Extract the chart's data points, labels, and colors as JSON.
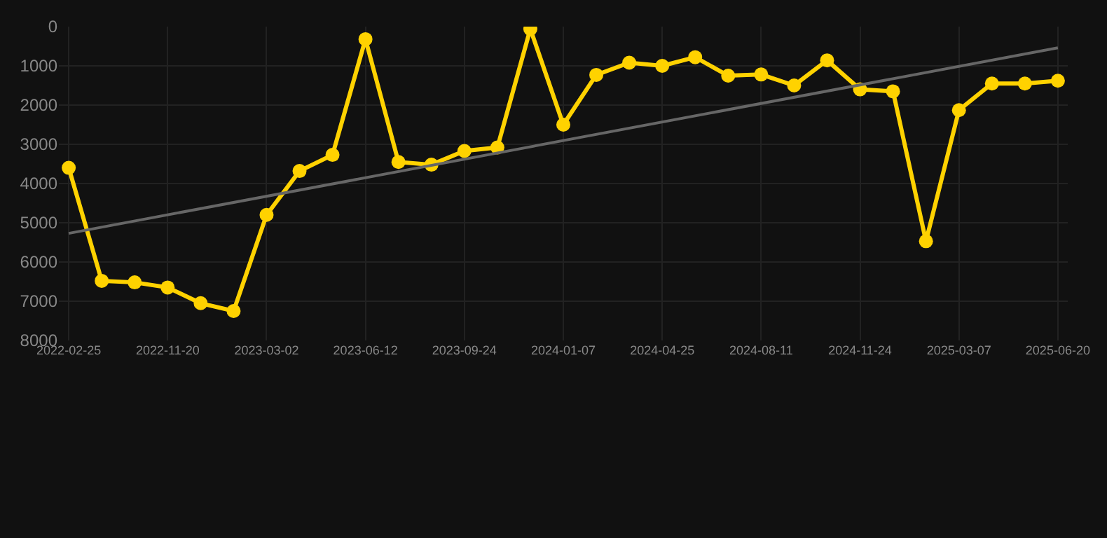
{
  "chart_data": {
    "type": "line",
    "categories": [
      "2022-02-25",
      null,
      null,
      "2022-11-20",
      null,
      null,
      "2023-03-02",
      null,
      null,
      "2023-06-12",
      null,
      null,
      "2023-09-24",
      null,
      null,
      "2024-01-07",
      null,
      null,
      "2024-04-25",
      null,
      null,
      "2024-08-11",
      null,
      null,
      "2024-11-24",
      null,
      null,
      "2025-03-07",
      null,
      null,
      "2025-06-20"
    ],
    "series": [
      {
        "color": "#ffd200",
        "marker": "circle",
        "values": [
          3600,
          6480,
          6520,
          6650,
          7050,
          7250,
          4800,
          3680,
          3270,
          320,
          3450,
          3520,
          3170,
          3080,
          60,
          2500,
          1230,
          920,
          1000,
          780,
          1250,
          1220,
          1500,
          860,
          1600,
          1650,
          5470,
          2130,
          1450,
          1450,
          1380
        ]
      },
      {
        "type": "line",
        "color": "#666666",
        "marker": "none",
        "values": [
          5270,
          null,
          null,
          null,
          null,
          null,
          null,
          null,
          null,
          null,
          null,
          null,
          null,
          null,
          null,
          null,
          null,
          null,
          null,
          null,
          null,
          null,
          null,
          null,
          null,
          null,
          null,
          null,
          null,
          null,
          540
        ]
      }
    ],
    "ylim": [
      8000,
      0
    ],
    "yticks": [
      0,
      1000,
      2000,
      3000,
      4000,
      5000,
      6000,
      7000,
      8000
    ],
    "grid": true,
    "line_style": "solid"
  }
}
